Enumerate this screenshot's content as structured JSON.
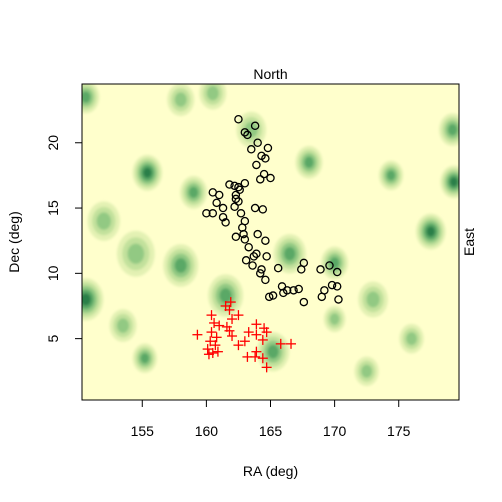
{
  "chart_data": {
    "type": "scatter",
    "title": "",
    "top_label": "North",
    "right_label": "East",
    "xlabel": "RA (deg)",
    "ylabel": "Dec (deg)",
    "xlim": [
      150.3,
      179.7
    ],
    "ylim": [
      0.3,
      24.5
    ],
    "x_ticks": [
      155,
      160,
      165,
      170,
      175
    ],
    "y_ticks": [
      5,
      10,
      15,
      20
    ],
    "background_color": "#ffffcc",
    "density_colors": [
      "#ffffcc",
      "#e3f1b3",
      "#c2e19c",
      "#92c983",
      "#5aa866",
      "#2a7f48"
    ],
    "density_blobs": [
      {
        "x": 150.6,
        "y": 8.0,
        "r": 1.3,
        "level": 5
      },
      {
        "x": 150.6,
        "y": 23.5,
        "r": 1.0,
        "level": 4
      },
      {
        "x": 155.4,
        "y": 17.7,
        "r": 1.1,
        "level": 5
      },
      {
        "x": 155.2,
        "y": 3.5,
        "r": 0.9,
        "level": 4
      },
      {
        "x": 158.0,
        "y": 10.6,
        "r": 1.3,
        "level": 4
      },
      {
        "x": 159.0,
        "y": 16.2,
        "r": 1.0,
        "level": 4
      },
      {
        "x": 158.0,
        "y": 23.3,
        "r": 1.0,
        "level": 3
      },
      {
        "x": 154.5,
        "y": 11.5,
        "r": 1.4,
        "level": 3
      },
      {
        "x": 161.5,
        "y": 8.3,
        "r": 1.3,
        "level": 4
      },
      {
        "x": 163.5,
        "y": 21.0,
        "r": 1.1,
        "level": 3
      },
      {
        "x": 166.5,
        "y": 11.5,
        "r": 1.2,
        "level": 4
      },
      {
        "x": 165.2,
        "y": 4.0,
        "r": 1.2,
        "level": 4
      },
      {
        "x": 168.0,
        "y": 18.5,
        "r": 1.0,
        "level": 4
      },
      {
        "x": 170.0,
        "y": 10.8,
        "r": 1.0,
        "level": 4
      },
      {
        "x": 170.0,
        "y": 6.5,
        "r": 0.8,
        "level": 3
      },
      {
        "x": 173.0,
        "y": 8.0,
        "r": 1.1,
        "level": 3
      },
      {
        "x": 174.4,
        "y": 17.5,
        "r": 0.9,
        "level": 4
      },
      {
        "x": 177.5,
        "y": 13.2,
        "r": 1.1,
        "level": 5
      },
      {
        "x": 179.3,
        "y": 17.0,
        "r": 1.0,
        "level": 5
      },
      {
        "x": 179.2,
        "y": 21.0,
        "r": 1.0,
        "level": 4
      },
      {
        "x": 176.0,
        "y": 5.0,
        "r": 0.9,
        "level": 3
      },
      {
        "x": 172.5,
        "y": 2.5,
        "r": 0.9,
        "level": 3
      },
      {
        "x": 160.5,
        "y": 23.8,
        "r": 1.0,
        "level": 3
      },
      {
        "x": 153.5,
        "y": 6.0,
        "r": 1.0,
        "level": 3
      },
      {
        "x": 152.0,
        "y": 14.0,
        "r": 1.2,
        "level": 3
      }
    ],
    "series": [
      {
        "marker": "circle",
        "color": "#000000",
        "points": [
          [
            162.5,
            21.8
          ],
          [
            163.0,
            20.8
          ],
          [
            163.2,
            20.6
          ],
          [
            163.8,
            21.3
          ],
          [
            164.0,
            20.0
          ],
          [
            164.8,
            19.6
          ],
          [
            163.5,
            19.5
          ],
          [
            164.3,
            19.0
          ],
          [
            164.6,
            18.8
          ],
          [
            163.9,
            18.3
          ],
          [
            165.0,
            17.3
          ],
          [
            164.5,
            17.6
          ],
          [
            164.2,
            17.2
          ],
          [
            161.8,
            16.8
          ],
          [
            162.2,
            16.7
          ],
          [
            162.5,
            16.6
          ],
          [
            163.0,
            16.9
          ],
          [
            160.5,
            16.2
          ],
          [
            161.0,
            16.0
          ],
          [
            162.3,
            16.0
          ],
          [
            162.6,
            16.4
          ],
          [
            162.3,
            15.7
          ],
          [
            162.5,
            15.5
          ],
          [
            160.8,
            15.4
          ],
          [
            161.3,
            15.0
          ],
          [
            162.2,
            15.1
          ],
          [
            162.7,
            14.6
          ],
          [
            163.8,
            15.0
          ],
          [
            164.4,
            14.9
          ],
          [
            160.0,
            14.6
          ],
          [
            160.5,
            14.6
          ],
          [
            161.3,
            14.3
          ],
          [
            163.0,
            14.0
          ],
          [
            161.5,
            13.9
          ],
          [
            162.8,
            13.5
          ],
          [
            164.0,
            13.0
          ],
          [
            162.3,
            12.8
          ],
          [
            163.0,
            12.6
          ],
          [
            162.9,
            13.0
          ],
          [
            164.6,
            12.5
          ],
          [
            163.3,
            12.0
          ],
          [
            163.7,
            11.3
          ],
          [
            163.9,
            11.5
          ],
          [
            164.7,
            11.3
          ],
          [
            163.1,
            11.0
          ],
          [
            163.6,
            10.6
          ],
          [
            164.3,
            10.3
          ],
          [
            164.2,
            10.0
          ],
          [
            164.6,
            9.5
          ],
          [
            165.6,
            10.4
          ],
          [
            167.6,
            10.8
          ],
          [
            167.4,
            10.3
          ],
          [
            168.9,
            10.3
          ],
          [
            169.6,
            10.6
          ],
          [
            170.2,
            10.1
          ],
          [
            165.9,
            9.0
          ],
          [
            166.0,
            8.5
          ],
          [
            165.2,
            8.3
          ],
          [
            164.9,
            8.2
          ],
          [
            166.3,
            8.7
          ],
          [
            166.8,
            8.7
          ],
          [
            169.2,
            8.7
          ],
          [
            169.8,
            9.1
          ],
          [
            170.2,
            9.0
          ],
          [
            167.2,
            8.8
          ],
          [
            169.0,
            8.2
          ],
          [
            167.6,
            7.8
          ],
          [
            170.3,
            8.0
          ]
        ]
      },
      {
        "marker": "plus",
        "color": "#ff0000",
        "points": [
          [
            161.9,
            7.8
          ],
          [
            161.5,
            7.5
          ],
          [
            161.8,
            7.2
          ],
          [
            160.4,
            6.8
          ],
          [
            162.5,
            6.8
          ],
          [
            162.0,
            6.5
          ],
          [
            160.6,
            6.2
          ],
          [
            161.0,
            6.0
          ],
          [
            161.6,
            5.9
          ],
          [
            163.9,
            6.1
          ],
          [
            164.5,
            5.8
          ],
          [
            164.7,
            5.5
          ],
          [
            161.8,
            5.6
          ],
          [
            160.4,
            5.5
          ],
          [
            163.3,
            5.5
          ],
          [
            162.0,
            5.2
          ],
          [
            163.9,
            5.3
          ],
          [
            159.3,
            5.3
          ],
          [
            160.8,
            5.1
          ],
          [
            160.3,
            4.8
          ],
          [
            163.0,
            4.8
          ],
          [
            164.4,
            4.9
          ],
          [
            160.7,
            4.5
          ],
          [
            162.5,
            4.5
          ],
          [
            165.8,
            4.6
          ],
          [
            166.6,
            4.6
          ],
          [
            160.1,
            4.2
          ],
          [
            160.9,
            4.0
          ],
          [
            163.9,
            4.0
          ],
          [
            160.2,
            3.8
          ],
          [
            160.5,
            3.9
          ],
          [
            163.2,
            3.6
          ],
          [
            163.8,
            3.6
          ],
          [
            164.4,
            3.5
          ],
          [
            164.7,
            2.8
          ]
        ]
      }
    ]
  }
}
